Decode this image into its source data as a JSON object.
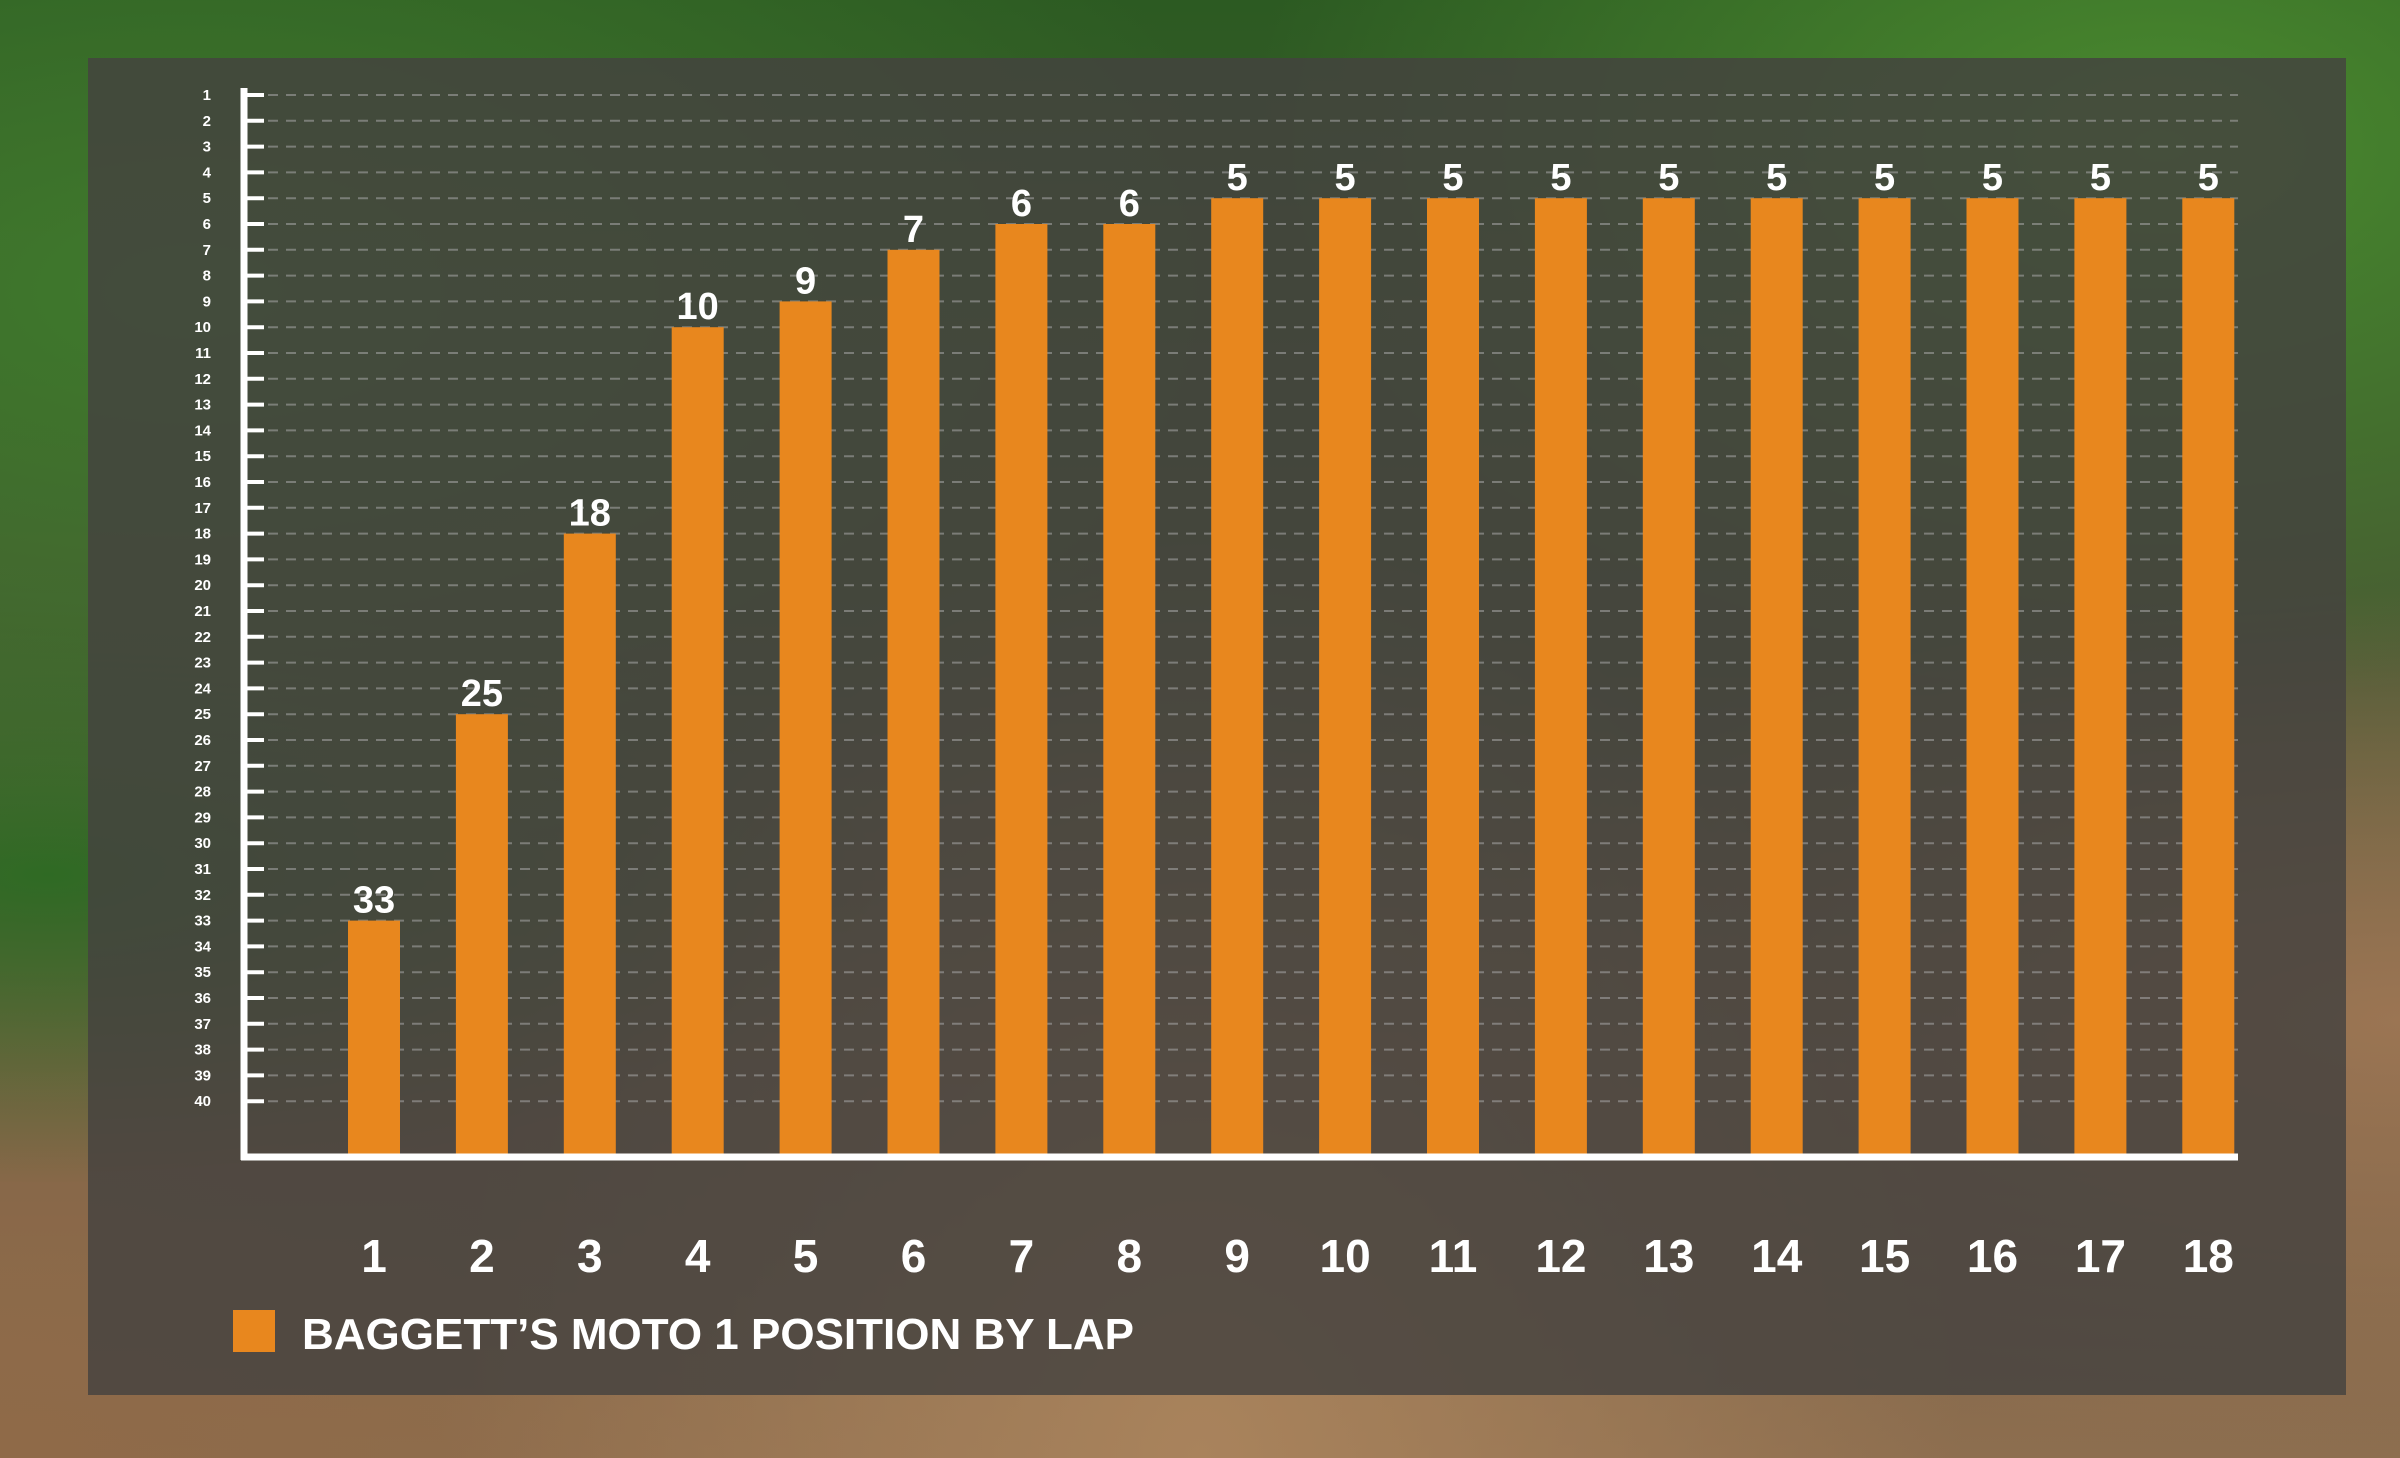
{
  "chart_data": {
    "type": "bar",
    "categories": [
      "1",
      "2",
      "3",
      "4",
      "5",
      "6",
      "7",
      "8",
      "9",
      "10",
      "11",
      "12",
      "13",
      "14",
      "15",
      "16",
      "17",
      "18"
    ],
    "series": [
      {
        "name": "BAGGETT’S MOTO 1 POSITION BY LAP",
        "values": [
          33,
          25,
          18,
          10,
          9,
          7,
          6,
          6,
          5,
          5,
          5,
          5,
          5,
          5,
          5,
          5,
          5,
          5
        ]
      }
    ],
    "y_ticks": [
      "1",
      "2",
      "3",
      "4",
      "5",
      "6",
      "7",
      "8",
      "9",
      "10",
      "11",
      "12",
      "13",
      "14",
      "15",
      "16",
      "17",
      "18",
      "19",
      "20",
      "21",
      "22",
      "23",
      "24",
      "25",
      "26",
      "27",
      "28",
      "29",
      "30",
      "31",
      "32",
      "33",
      "34",
      "35",
      "36",
      "37",
      "38",
      "39",
      "40"
    ],
    "ylim": [
      1,
      40
    ],
    "y_inverted": true,
    "grid": true,
    "legend": "bottom-left",
    "title": "",
    "xlabel": "",
    "ylabel": "",
    "colors": {
      "bar": "#e8871e",
      "axis": "#ffffff",
      "grid": "#a8a8a8",
      "text": "#ffffff"
    }
  }
}
